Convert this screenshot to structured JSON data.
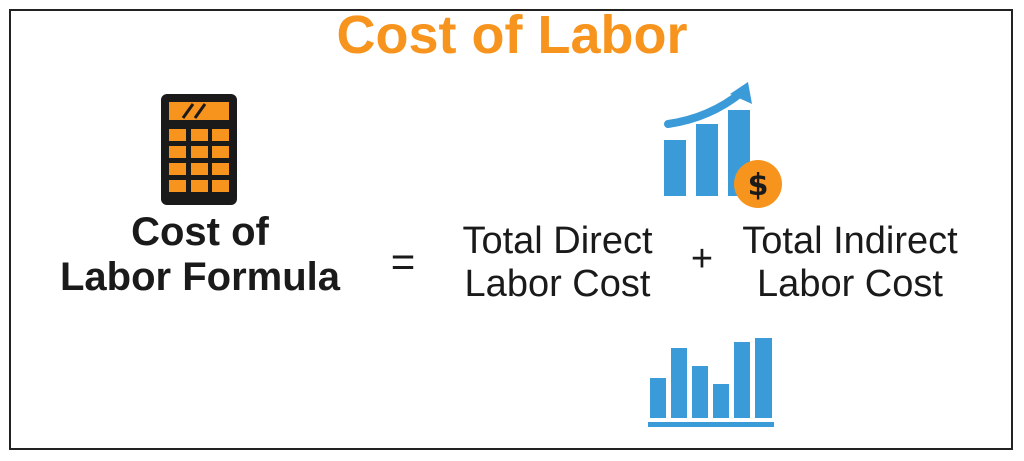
{
  "title": "Cost of Labor",
  "formula": {
    "lhs_line1": "Cost of",
    "lhs_line2": "Labor Formula",
    "equals": "=",
    "term1_line1": "Total Direct",
    "term1_line2": "Labor Cost",
    "plus": "+",
    "term2_line1": "Total Indirect",
    "term2_line2": "Labor Cost"
  },
  "icons": {
    "calculator": "calculator-icon",
    "growth": "growth-chart-dollar-icon",
    "bars": "bar-chart-icon",
    "dollar_symbol": "$"
  },
  "colors": {
    "title": "#f7941d",
    "text": "#1a1a1a",
    "icon_blue": "#3a9bd8",
    "icon_orange": "#f7941d",
    "icon_dark": "#1a1a1a"
  }
}
